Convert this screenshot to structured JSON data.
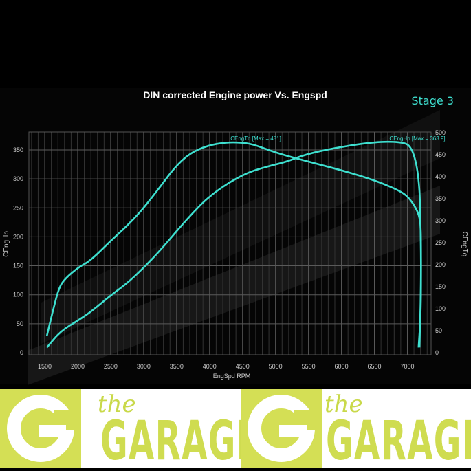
{
  "chart_data": {
    "type": "line",
    "title": "DIN corrected Engine power Vs. Engspd",
    "badge": "Stage 3",
    "xlabel": "EngSpd RPM",
    "ylabel_left": "CEngHp",
    "ylabel_right": "CEngTq",
    "xlim": [
      1260,
      7360
    ],
    "ylim_left": [
      0,
      381
    ],
    "ylim_right": [
      0,
      500
    ],
    "x_ticks": [
      1500,
      2000,
      2500,
      3000,
      3500,
      4000,
      4500,
      5000,
      5500,
      6000,
      6500,
      7000
    ],
    "y_ticks_left": [
      0,
      50,
      100,
      150,
      200,
      250,
      300,
      350
    ],
    "y_ticks_right": [
      0,
      50,
      100,
      150,
      200,
      250,
      300,
      350,
      400,
      450,
      500
    ],
    "grid": true,
    "line_color": "#3ee0d0",
    "series": [
      {
        "name": "CEngHp",
        "axis": "left",
        "annotation": "CEngHp [Max = 363.9]",
        "x": [
          1532,
          1737,
          2010,
          2193,
          2512,
          2740,
          2968,
          3241,
          3651,
          4016,
          4517,
          4928,
          5155,
          5475,
          5976,
          6523,
          6888,
          7070,
          7184,
          7207,
          7207,
          7170
        ],
        "y": [
          9,
          37,
          56,
          70,
          100,
          119,
          143,
          175,
          230,
          273,
          309,
          323,
          329,
          343,
          355,
          364,
          364,
          357,
          301,
          190,
          72,
          9
        ]
      },
      {
        "name": "CEngTq",
        "axis": "right",
        "annotation": "CEngTq [Max = 481]",
        "x": [
          1532,
          1623,
          1714,
          1805,
          2010,
          2193,
          2512,
          2740,
          2968,
          3241,
          3469,
          3697,
          3970,
          4244,
          4472,
          4654,
          4928,
          5155,
          5611,
          6067,
          6523,
          6933,
          7070,
          7184,
          7207,
          7207,
          7184
        ],
        "y": [
          38,
          95,
          147,
          168,
          194,
          209,
          256,
          287,
          323,
          375,
          421,
          453,
          471,
          478,
          478,
          474,
          459,
          448,
          430,
          412,
          391,
          365,
          344,
          313,
          277,
          147,
          12
        ]
      }
    ]
  },
  "banner": {
    "logos": [
      {
        "the": "the",
        "name": "GARAGE"
      },
      {
        "the": "the",
        "name": "GARAGE"
      }
    ],
    "brand_color": "#d4df55"
  }
}
